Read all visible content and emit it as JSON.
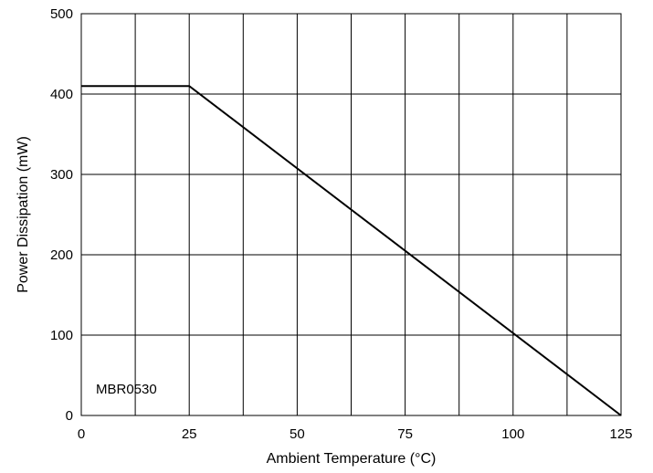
{
  "chart_data": {
    "type": "line",
    "title": "",
    "xlabel": "Ambient Temperature (°C)",
    "ylabel": "Power Dissipation (mW)",
    "xlim": [
      0,
      125
    ],
    "ylim": [
      0,
      500
    ],
    "x_major_ticks": [
      0,
      25,
      50,
      75,
      100,
      125
    ],
    "x_tick_labels": [
      "0",
      "25",
      "50",
      "75",
      "100",
      "125"
    ],
    "x_grid": [
      0,
      12.5,
      25,
      37.5,
      50,
      62.5,
      75,
      87.5,
      100,
      112.5,
      125
    ],
    "y_ticks": [
      0,
      100,
      200,
      300,
      400,
      500
    ],
    "y_tick_labels": [
      "0",
      "100",
      "200",
      "300",
      "400",
      "500"
    ],
    "y_grid": [
      0,
      100,
      200,
      300,
      400,
      500
    ],
    "grid": true,
    "annotation": "MBR0530",
    "series": [
      {
        "x": [
          0,
          25,
          125
        ],
        "y": [
          410,
          410,
          0
        ],
        "color": "#000000"
      }
    ]
  }
}
